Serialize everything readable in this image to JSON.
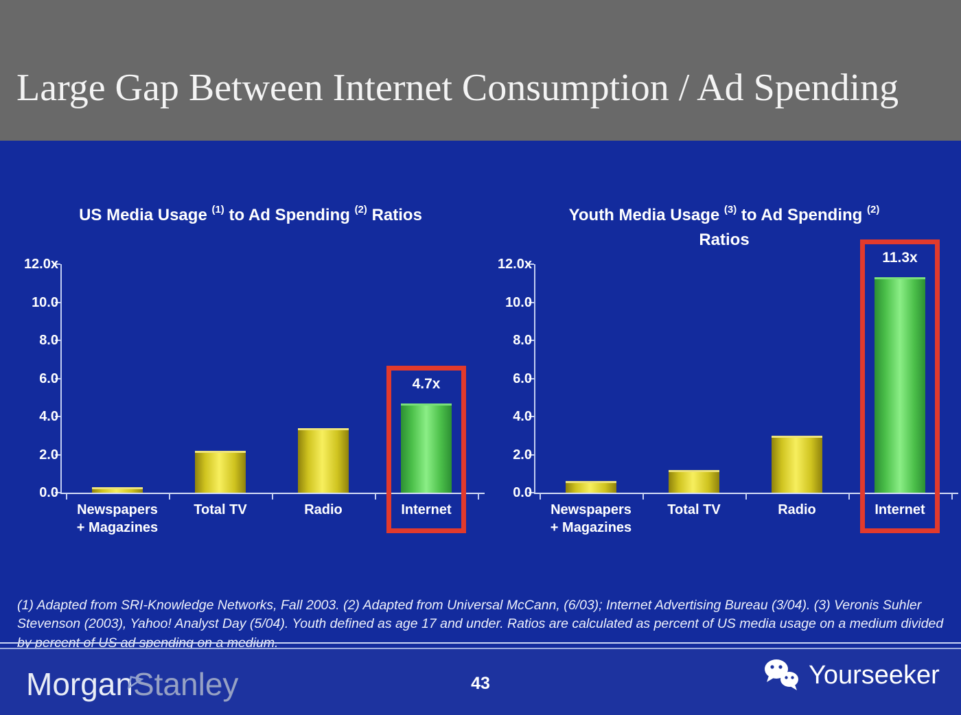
{
  "slide": {
    "title": "Large Gap Between Internet Consumption / Ad Spending",
    "page_number": "43",
    "footnote": "(1) Adapted from SRI-Knowledge Networks, Fall 2003.  (2) Adapted from Universal McCann, (6/03); Internet Advertising Bureau (3/04). (3) Veronis Suhler Stevenson (2003), Yahoo! Analyst Day (5/04).  Youth defined as age 17 and under.  Ratios are calculated as percent of US media usage on a medium divided by percent of US ad spending on a medium."
  },
  "branding": {
    "logo_left_part1": "Morgan",
    "logo_left_part2": "Stanley",
    "logo_right_text": "Yourseeker",
    "logo_right_icon": "wechat-icon"
  },
  "colors": {
    "header_bg": "#696969",
    "slide_bg": "#132b9d",
    "footer_bg": "#1d339f",
    "axis": "#c3cef2",
    "bar_yellow": "#e8dc35",
    "bar_green": "#5ecc55",
    "highlight_red": "#e23a2c",
    "text": "#ffffff"
  },
  "chart_data": [
    {
      "type": "bar",
      "title": "US Media Usage (1) to Ad Spending (2) Ratios",
      "title_segments": [
        {
          "text": "US Media Usage "
        },
        {
          "sup": "(1)"
        },
        {
          "text": " to Ad Spending "
        },
        {
          "sup": "(2)"
        },
        {
          "text": " Ratios"
        }
      ],
      "categories": [
        "Newspapers\n+ Magazines",
        "Total TV",
        "Radio",
        "Internet"
      ],
      "values": [
        0.3,
        2.2,
        3.4,
        4.7
      ],
      "bar_labels": [
        "",
        "",
        "",
        "4.7x"
      ],
      "bar_colors": [
        "yellow",
        "yellow",
        "yellow",
        "green"
      ],
      "highlight_index": 3,
      "y_ticks": [
        "12.0x",
        "10.0",
        "8.0",
        "6.0",
        "4.0",
        "2.0",
        "0.0"
      ],
      "ylim": [
        0,
        12
      ],
      "grid": false,
      "legend": false
    },
    {
      "type": "bar",
      "title": "Youth Media Usage (3) to Ad Spending (2) Ratios",
      "title_segments": [
        {
          "text": "Youth Media Usage "
        },
        {
          "sup": "(3)"
        },
        {
          "text": " to Ad Spending "
        },
        {
          "sup": "(2)"
        },
        {
          "br": true
        },
        {
          "text": "Ratios"
        }
      ],
      "categories": [
        "Newspapers\n+ Magazines",
        "Total TV",
        "Radio",
        "Internet"
      ],
      "values": [
        0.6,
        1.2,
        3.0,
        11.3
      ],
      "bar_labels": [
        "",
        "",
        "",
        "11.3x"
      ],
      "bar_colors": [
        "yellow",
        "yellow",
        "yellow",
        "green"
      ],
      "highlight_index": 3,
      "y_ticks": [
        "12.0x",
        "10.0",
        "8.0",
        "6.0",
        "4.0",
        "2.0",
        "0.0"
      ],
      "ylim": [
        0,
        12
      ],
      "grid": false,
      "legend": false
    }
  ]
}
